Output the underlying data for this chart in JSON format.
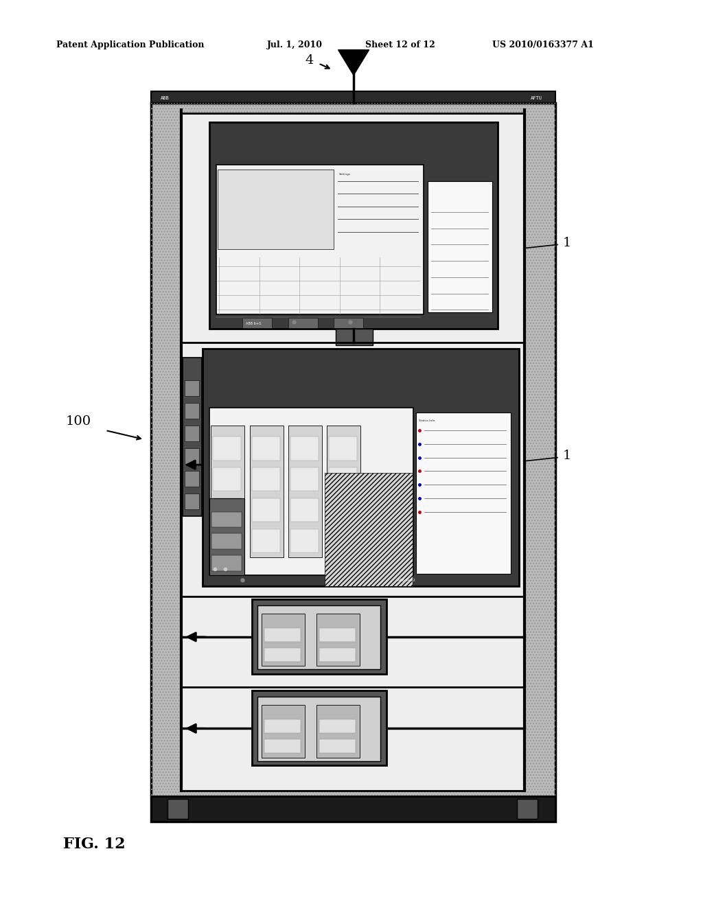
{
  "bg_color": "#ffffff",
  "header_text": "Patent Application Publication",
  "header_date": "Jul. 1, 2010",
  "header_sheet": "Sheet 12 of 12",
  "header_patent": "US 2010/0163377 A1",
  "fig_label": "FIG. 12",
  "label_4": "4",
  "label_100": "100",
  "label_1a": "1",
  "label_1b": "1"
}
